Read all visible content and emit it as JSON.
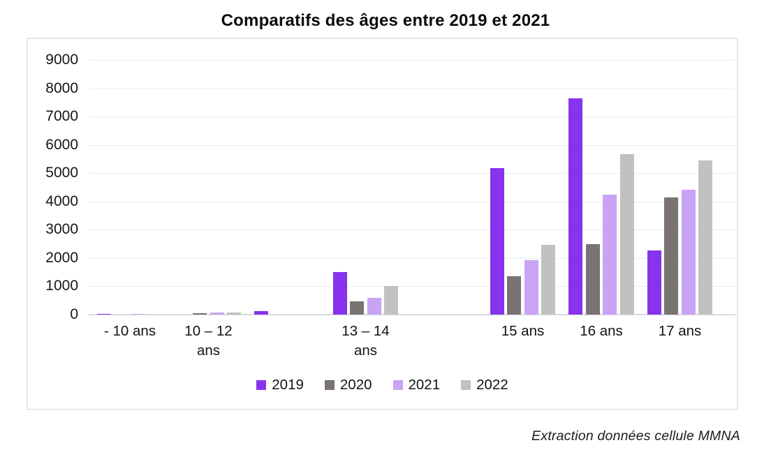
{
  "title": "Comparatifs des âges entre 2019 et 2021",
  "footer": "Extraction données cellule MMNA",
  "chart_data": {
    "type": "bar",
    "title": "Comparatifs des âges entre 2019 et 2021",
    "source_note": "Extraction données cellule MMNA",
    "categories": [
      {
        "lines": [
          "- 10 ans"
        ]
      },
      {
        "lines": [
          "10 – 12",
          "ans"
        ]
      },
      {
        "lines": []
      },
      {
        "lines": [
          "13 – 14",
          "ans"
        ]
      },
      {
        "lines": []
      },
      {
        "lines": [
          "15 ans"
        ]
      },
      {
        "lines": [
          "16 ans"
        ]
      },
      {
        "lines": [
          "17 ans"
        ]
      }
    ],
    "series": [
      {
        "name": "2019",
        "color": "#8733ee",
        "values": [
          20,
          0,
          120,
          1500,
          0,
          5170,
          7640,
          2280
        ]
      },
      {
        "name": "2020",
        "color": "#797373",
        "values": [
          0,
          60,
          0,
          470,
          0,
          1360,
          2480,
          4140
        ]
      },
      {
        "name": "2021",
        "color": "#c9a4f4",
        "values": [
          20,
          80,
          0,
          600,
          0,
          1920,
          4230,
          4420
        ]
      },
      {
        "name": "2022",
        "color": "#c2c1c1",
        "values": [
          0,
          80,
          0,
          1020,
          0,
          2470,
          5680,
          5450
        ]
      }
    ],
    "ylim": [
      0,
      9000
    ],
    "ytick_step": 1000,
    "yticks": [
      0,
      1000,
      2000,
      3000,
      4000,
      5000,
      6000,
      7000,
      8000,
      9000
    ],
    "grid": true,
    "legend_position": "bottom",
    "legend_entries": [
      "2019",
      "2020",
      "2021",
      "2022"
    ]
  }
}
